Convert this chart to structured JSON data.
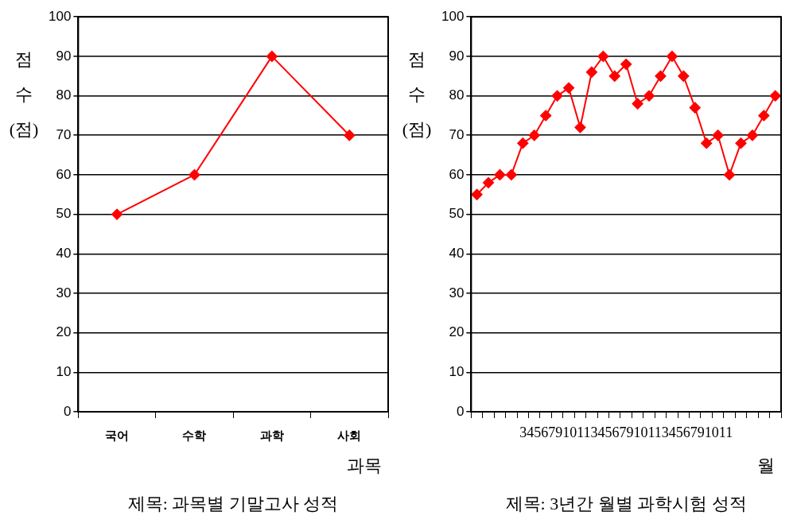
{
  "chart_data": [
    {
      "type": "line",
      "title": "제목: 과목별 기말고사 성적",
      "xlabel": "과목",
      "ylabel": "점수(점)",
      "categories": [
        "국어",
        "수학",
        "과학",
        "사회"
      ],
      "series": [
        {
          "color": "#ff0000",
          "values": [
            50,
            60,
            90,
            70
          ]
        }
      ],
      "ylim": [
        0,
        100
      ],
      "yticks": [
        0,
        10,
        20,
        30,
        40,
        50,
        60,
        70,
        80,
        90,
        100
      ],
      "grid": "y",
      "legend": false,
      "marker": "diamond",
      "line_style": "solid"
    },
    {
      "type": "line",
      "title": "제목: 3년간 월별 과학시험 성적",
      "xlabel": "월",
      "ylabel": "점수(점)",
      "annotations": [
        "345679101134567910113456791011"
      ],
      "categories": [
        null,
        null,
        null,
        null,
        null,
        null,
        null,
        null,
        null,
        null,
        null,
        null,
        null,
        null,
        null,
        null,
        null,
        null,
        null,
        null,
        null,
        null,
        null,
        null,
        null,
        null,
        null
      ],
      "series": [
        {
          "color": "#ff0000",
          "values": [
            55,
            58,
            60,
            60,
            68,
            70,
            75,
            80,
            82,
            72,
            86,
            90,
            85,
            88,
            78,
            80,
            85,
            90,
            85,
            77,
            68,
            70,
            60,
            68,
            70,
            75,
            80
          ]
        }
      ],
      "ylim": [
        0,
        100
      ],
      "yticks": [
        0,
        10,
        20,
        30,
        40,
        50,
        60,
        70,
        80,
        90,
        100
      ],
      "grid": "y",
      "legend": false,
      "marker": "diamond",
      "line_style": "solid"
    }
  ]
}
